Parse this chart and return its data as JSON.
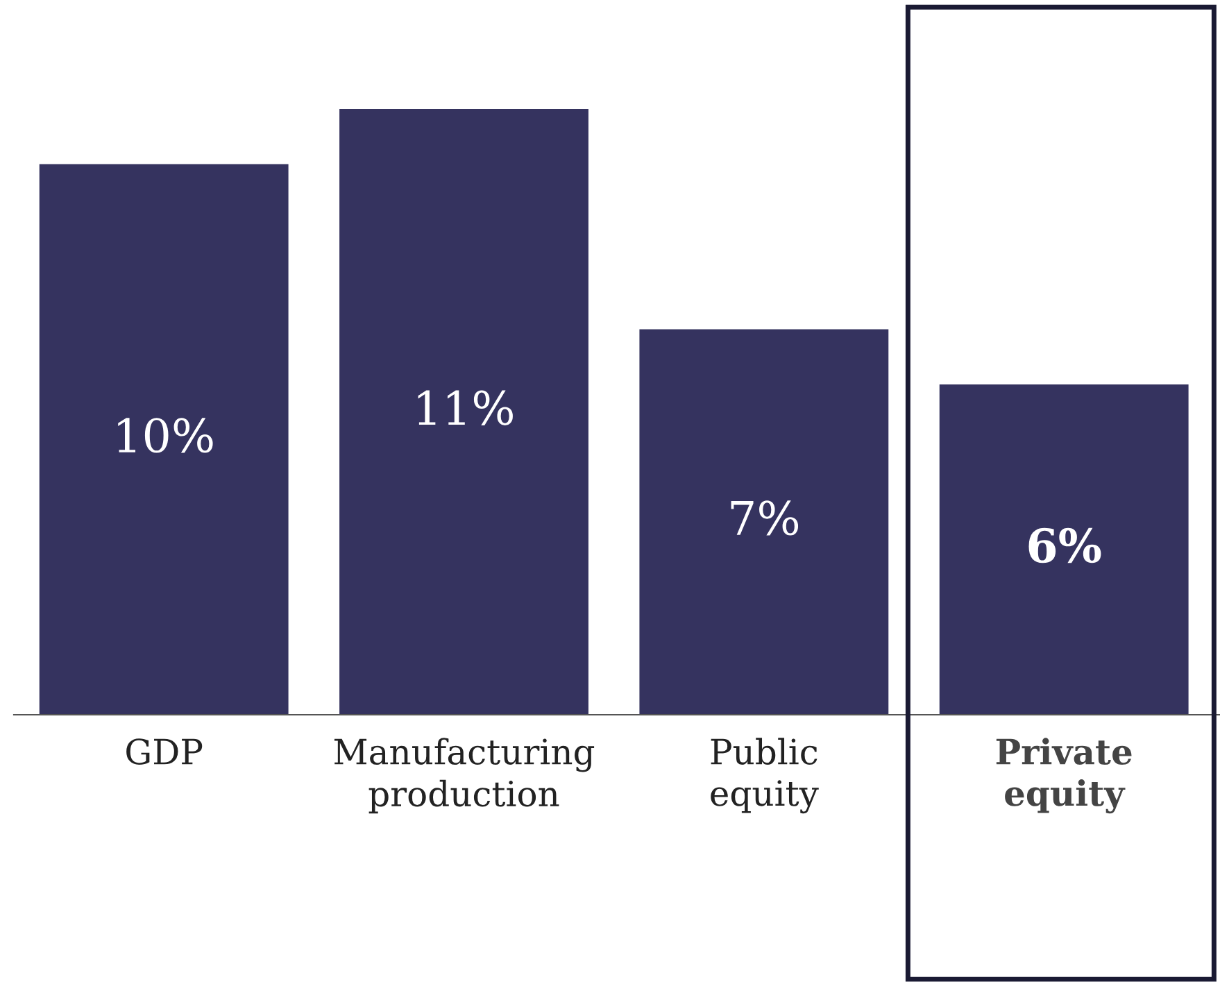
{
  "chart_data": {
    "type": "bar",
    "categories": [
      "GDP",
      "Manufacturing\nproduction",
      "Public\nequity",
      "Private\nequity"
    ],
    "values": [
      10,
      11,
      7,
      6
    ],
    "value_labels": [
      "10%",
      "11%",
      "7%",
      "6%"
    ],
    "color": "#35335f"
  }
}
